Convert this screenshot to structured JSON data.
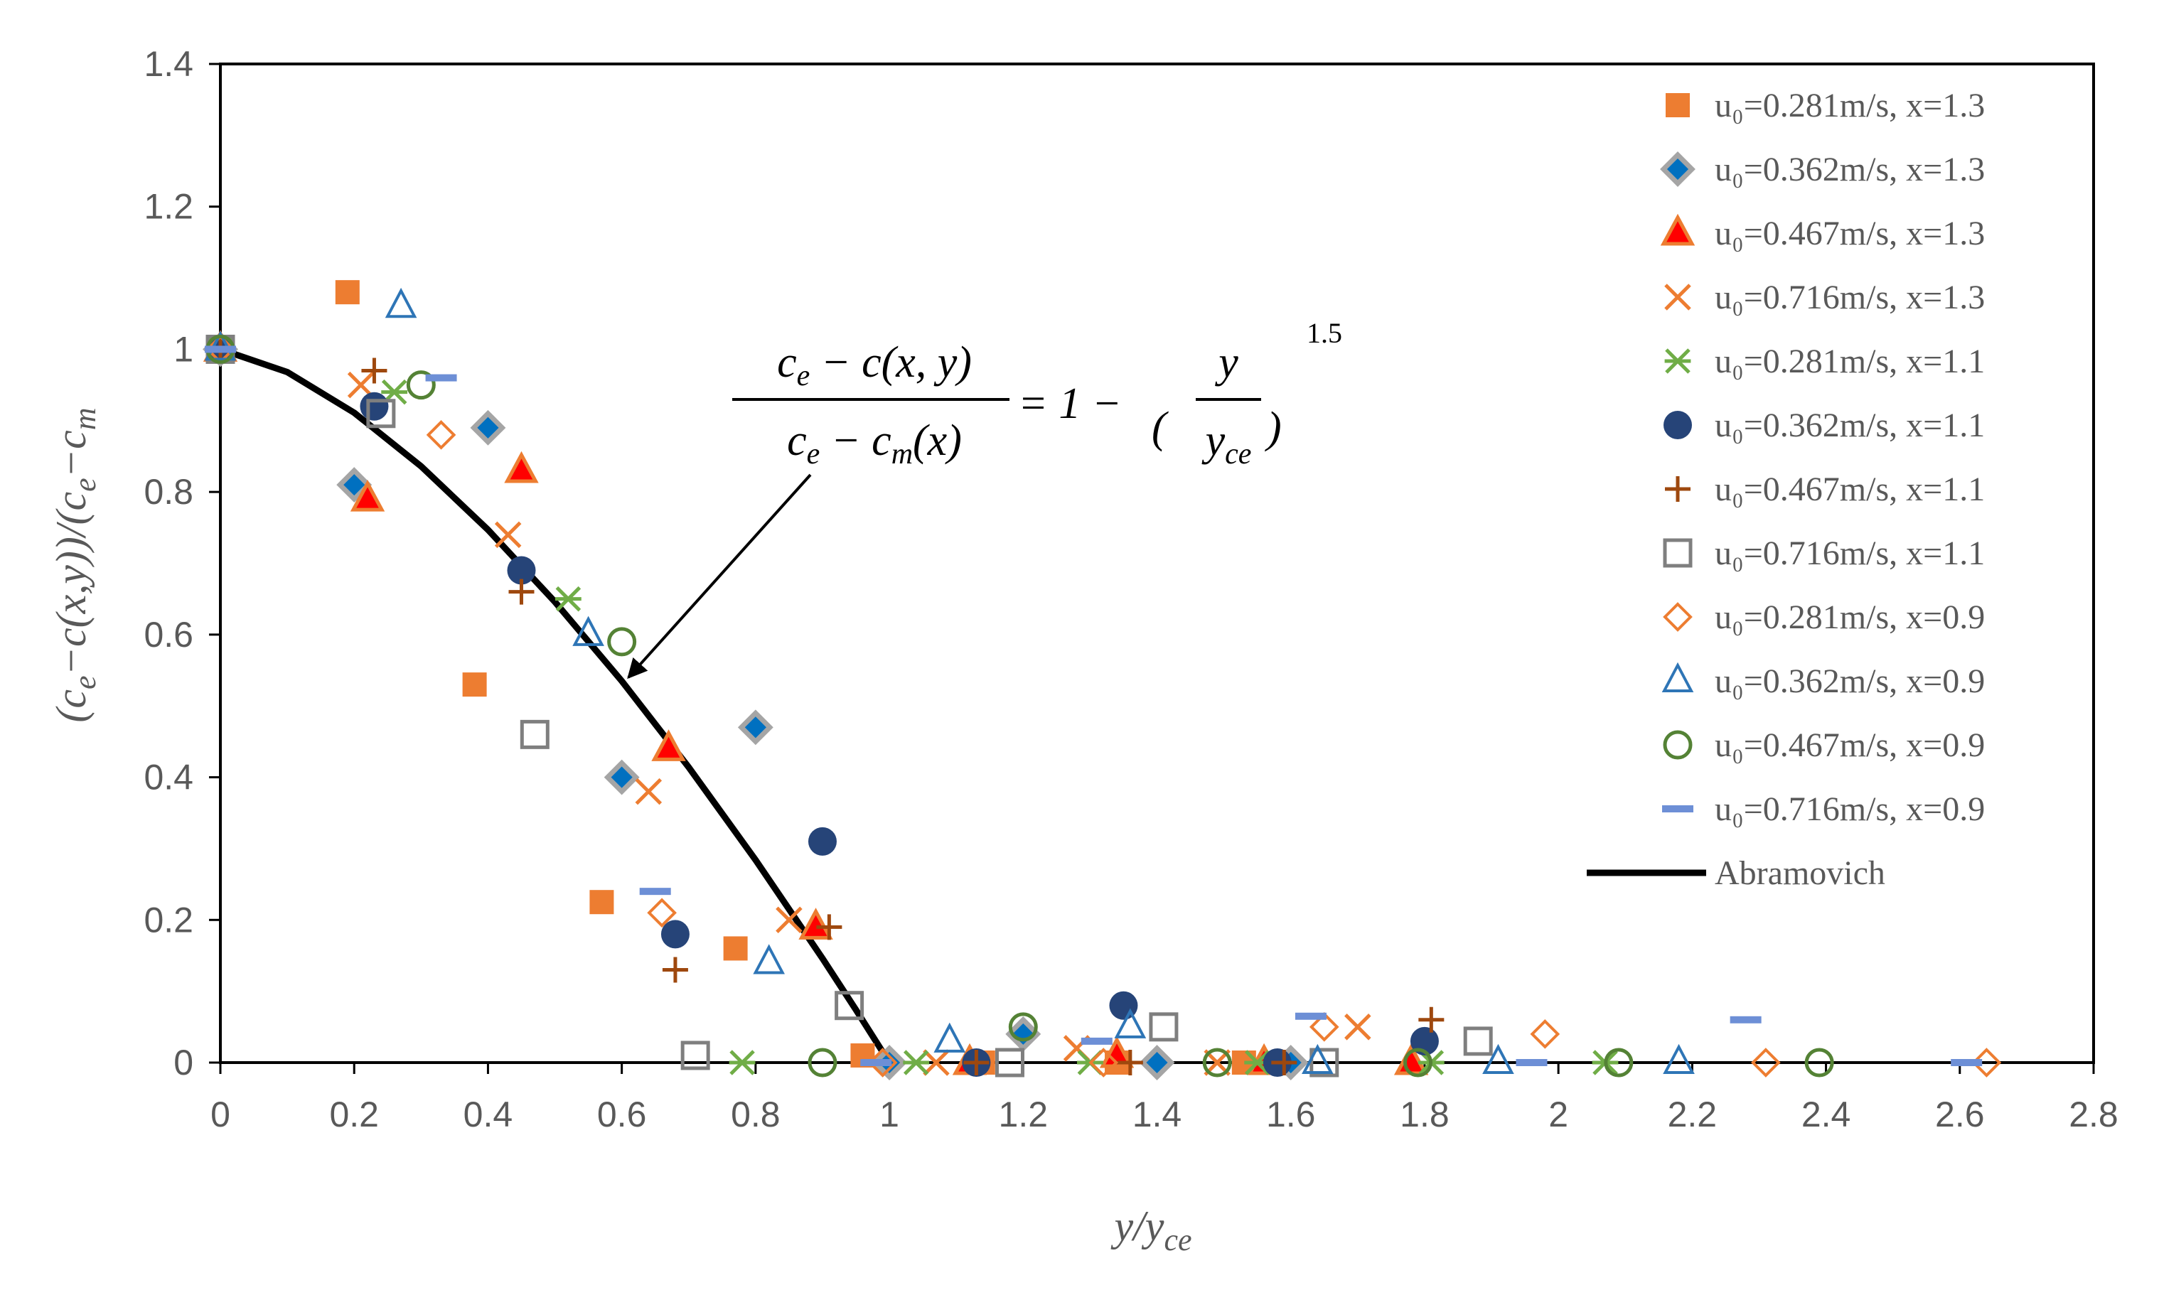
{
  "chart_data": {
    "type": "scatter",
    "title": "",
    "xlabel": "y/y_ce",
    "ylabel": "(c_e − c(x,y))/(c_e − c_m)",
    "xlim": [
      0,
      2.8
    ],
    "ylim": [
      0,
      1.4
    ],
    "x_ticks": [
      "0",
      "0.2",
      "0.4",
      "0.6",
      "0.8",
      "1",
      "1.2",
      "1.4",
      "1.6",
      "1.8",
      "2",
      "2.2",
      "2.4",
      "2.6",
      "2.8"
    ],
    "y_ticks": [
      "0",
      "0.2",
      "0.4",
      "0.6",
      "0.8",
      "1",
      "1.2",
      "1.4"
    ],
    "grid": false,
    "legend_position": "right",
    "series": [
      {
        "name": "u₀=0.281m/s, x=1.3",
        "marker": "filled-square",
        "color": "#ED7D31",
        "points": [
          [
            0,
            1.0
          ],
          [
            0.19,
            1.08
          ],
          [
            0.38,
            0.53
          ],
          [
            0.57,
            0.225
          ],
          [
            0.77,
            0.16
          ],
          [
            0.96,
            0.01
          ],
          [
            1.14,
            0.0
          ],
          [
            1.34,
            0.0
          ],
          [
            1.53,
            0.0
          ]
        ]
      },
      {
        "name": "u₀=0.362m/s, x=1.3",
        "marker": "diamond-gray-blue",
        "color": "#0070C0",
        "points": [
          [
            0,
            1.0
          ],
          [
            0.2,
            0.81
          ],
          [
            0.4,
            0.89
          ],
          [
            0.6,
            0.4
          ],
          [
            0.8,
            0.47
          ],
          [
            1.0,
            0.0
          ],
          [
            1.2,
            0.04
          ],
          [
            1.4,
            0.0
          ],
          [
            1.6,
            0.0
          ]
        ]
      },
      {
        "name": "u₀=0.467m/s, x=1.3",
        "marker": "filled-triangle",
        "color": "#FF0000",
        "points": [
          [
            0,
            1.0
          ],
          [
            0.22,
            0.79
          ],
          [
            0.45,
            0.83
          ],
          [
            0.67,
            0.44
          ],
          [
            0.89,
            0.19
          ],
          [
            1.12,
            0.0
          ],
          [
            1.34,
            0.01
          ],
          [
            1.56,
            0.0
          ],
          [
            1.78,
            0.0
          ]
        ]
      },
      {
        "name": "u₀=0.716m/s, x=1.3",
        "marker": "x",
        "color": "#ED7D31",
        "points": [
          [
            0,
            1.0
          ],
          [
            0.21,
            0.95
          ],
          [
            0.43,
            0.74
          ],
          [
            0.64,
            0.38
          ],
          [
            0.85,
            0.2
          ],
          [
            1.07,
            0.0
          ],
          [
            1.28,
            0.02
          ],
          [
            1.49,
            0.0
          ],
          [
            1.7,
            0.05
          ]
        ]
      },
      {
        "name": "u₀=0.281m/s, x=1.1",
        "marker": "star",
        "color": "#70AD47",
        "points": [
          [
            0,
            1.0
          ],
          [
            0.26,
            0.94
          ],
          [
            0.52,
            0.65
          ],
          [
            0.78,
            0.0
          ],
          [
            1.04,
            0.0
          ],
          [
            1.3,
            0.0
          ],
          [
            1.55,
            0.0
          ],
          [
            1.81,
            0.0
          ],
          [
            2.07,
            0.0
          ]
        ]
      },
      {
        "name": "u₀=0.362m/s, x=1.1",
        "marker": "filled-circle",
        "color": "#264478",
        "points": [
          [
            0,
            1.0
          ],
          [
            0.23,
            0.92
          ],
          [
            0.45,
            0.69
          ],
          [
            0.68,
            0.18
          ],
          [
            0.9,
            0.31
          ],
          [
            1.13,
            0.0
          ],
          [
            1.35,
            0.08
          ],
          [
            1.58,
            0.0
          ],
          [
            1.8,
            0.03
          ]
        ]
      },
      {
        "name": "u₀=0.467m/s, x=1.1",
        "marker": "plus",
        "color": "#9E480E",
        "points": [
          [
            0,
            1.0
          ],
          [
            0.23,
            0.97
          ],
          [
            0.45,
            0.66
          ],
          [
            0.68,
            0.13
          ],
          [
            0.91,
            0.19
          ],
          [
            1.13,
            0.0
          ],
          [
            1.36,
            0.0
          ],
          [
            1.59,
            0.0
          ],
          [
            1.81,
            0.06
          ]
        ]
      },
      {
        "name": "u₀=0.716m/s, x=1.1",
        "marker": "open-square",
        "color": "#7F7F7F",
        "points": [
          [
            0,
            1.0
          ],
          [
            0.24,
            0.91
          ],
          [
            0.47,
            0.46
          ],
          [
            0.71,
            0.01
          ],
          [
            0.94,
            0.08
          ],
          [
            1.18,
            0.0
          ],
          [
            1.41,
            0.05
          ],
          [
            1.65,
            0.0
          ],
          [
            1.88,
            0.03
          ]
        ]
      },
      {
        "name": "u₀=0.281m/s, x=0.9",
        "marker": "open-diamond",
        "color": "#ED7D31",
        "points": [
          [
            0,
            1.0
          ],
          [
            0.33,
            0.88
          ],
          [
            0.66,
            0.21
          ],
          [
            0.99,
            0.0
          ],
          [
            1.32,
            0.0
          ],
          [
            1.65,
            0.05
          ],
          [
            1.98,
            0.04
          ],
          [
            2.31,
            0.0
          ],
          [
            2.64,
            0.0
          ]
        ]
      },
      {
        "name": "u₀=0.362m/s, x=0.9",
        "marker": "open-triangle",
        "color": "#2E75B6",
        "points": [
          [
            0,
            1.0
          ],
          [
            0.27,
            1.06
          ],
          [
            0.55,
            0.6
          ],
          [
            0.82,
            0.14
          ],
          [
            1.09,
            0.03
          ],
          [
            1.36,
            0.05
          ],
          [
            1.64,
            0.0
          ],
          [
            1.91,
            0.0
          ],
          [
            2.18,
            0.0
          ]
        ]
      },
      {
        "name": "u₀=0.467m/s, x=0.9",
        "marker": "open-circle",
        "color": "#548235",
        "points": [
          [
            0,
            1.0
          ],
          [
            0.3,
            0.95
          ],
          [
            0.6,
            0.59
          ],
          [
            0.9,
            0.0
          ],
          [
            1.2,
            0.05
          ],
          [
            1.49,
            0.0
          ],
          [
            1.79,
            0.0
          ],
          [
            2.09,
            0.0
          ],
          [
            2.39,
            0.0
          ]
        ]
      },
      {
        "name": "u₀=0.716m/s, x=0.9",
        "marker": "dash",
        "color": "#6D8FD6",
        "points": [
          [
            0,
            1.0
          ],
          [
            0.33,
            0.96
          ],
          [
            0.65,
            0.24
          ],
          [
            0.98,
            0.0
          ],
          [
            1.31,
            0.03
          ],
          [
            1.63,
            0.065
          ],
          [
            1.96,
            0.0
          ],
          [
            2.28,
            0.06
          ],
          [
            2.61,
            0.0
          ]
        ]
      },
      {
        "name": "Abramovich",
        "marker": "line",
        "color": "#000000",
        "points": [
          [
            0,
            1.0
          ],
          [
            0.1,
            0.968
          ],
          [
            0.2,
            0.911
          ],
          [
            0.3,
            0.836
          ],
          [
            0.4,
            0.747
          ],
          [
            0.5,
            0.646
          ],
          [
            0.6,
            0.535
          ],
          [
            0.7,
            0.414
          ],
          [
            0.8,
            0.284
          ],
          [
            0.9,
            0.146
          ],
          [
            0.95,
            0.074
          ],
          [
            1.0,
            0.0
          ]
        ]
      }
    ],
    "annotation": {
      "lhs_numerator": "c_e − c(x, y)",
      "lhs_denominator": "c_e − c_m(x)",
      "rhs": "= 1 − (y / y_ce)^1.5",
      "exponent": "1.5",
      "arrow_target": [
        0.61,
        0.54
      ]
    }
  }
}
